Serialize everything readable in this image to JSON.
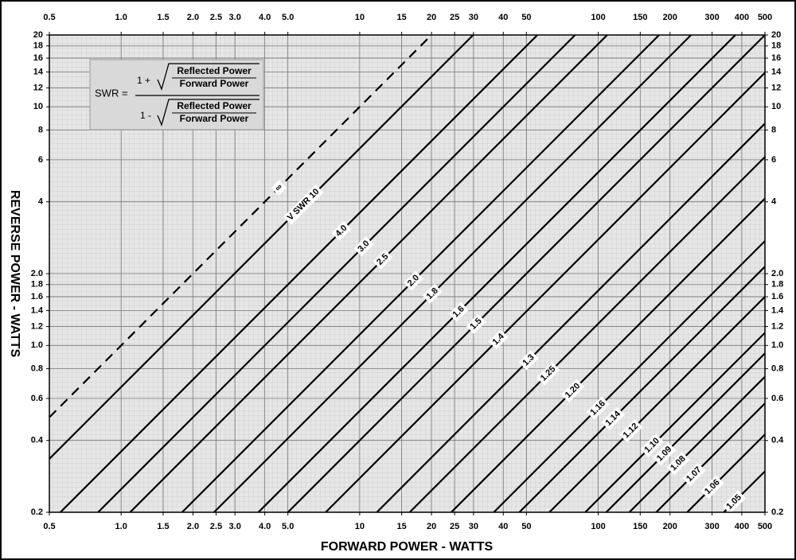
{
  "chart_data": {
    "type": "line",
    "x_label": "FORWARD POWER - WATTS",
    "y_label": "REVERSE POWER - WATTS",
    "log_x": true,
    "log_y": true,
    "grid": true,
    "xlim": [
      0.5,
      500
    ],
    "ylim": [
      0.2,
      20
    ],
    "xticks": [
      0.5,
      {
        "value": 1,
        "label": "1.0"
      },
      1.5,
      {
        "value": 2,
        "label": "2.0"
      },
      2.5,
      {
        "value": 3,
        "label": "3.0"
      },
      {
        "value": 4,
        "label": "4.0"
      },
      {
        "value": 5,
        "label": "5.0"
      },
      10,
      15,
      20,
      25,
      30,
      40,
      50,
      100,
      150,
      200,
      300,
      400,
      500
    ],
    "yticks": [
      0.2,
      0.4,
      0.6,
      0.8,
      {
        "value": 1,
        "label": "1.0"
      },
      1.2,
      1.4,
      1.6,
      1.8,
      {
        "value": 2,
        "label": "2.0"
      },
      4,
      6,
      8,
      10,
      12,
      14,
      16,
      18,
      20
    ],
    "formula": {
      "lhs": "SWR =",
      "num_prefix": "1 +",
      "den_prefix": "1 -",
      "inner_top": "Reflected Power",
      "inner_bottom": "Forward Power"
    },
    "series": [
      {
        "name": "∞",
        "color": "#000000",
        "style": "dashed",
        "x": [
          0.5,
          20
        ],
        "values": [
          0.5,
          20
        ]
      },
      {
        "name": "V SWR 10",
        "color": "#000000",
        "style": "solid",
        "x": [
          0.5,
          29.9
        ],
        "values": [
          0.335,
          20
        ]
      },
      {
        "name": "4.0",
        "color": "#000000",
        "style": "solid",
        "x": [
          0.556,
          55.6
        ],
        "values": [
          0.2,
          20
        ]
      },
      {
        "name": "3.0",
        "color": "#000000",
        "style": "solid",
        "x": [
          0.8,
          80
        ],
        "values": [
          0.2,
          20
        ]
      },
      {
        "name": "2.5",
        "color": "#000000",
        "style": "solid",
        "x": [
          1.09,
          109
        ],
        "values": [
          0.2,
          20
        ]
      },
      {
        "name": "2.0",
        "color": "#000000",
        "style": "solid",
        "x": [
          1.8,
          180
        ],
        "values": [
          0.2,
          20
        ]
      },
      {
        "name": "1.8",
        "color": "#000000",
        "style": "solid",
        "x": [
          2.45,
          245
        ],
        "values": [
          0.2,
          20
        ]
      },
      {
        "name": "1.6",
        "color": "#000000",
        "style": "solid",
        "x": [
          3.76,
          376
        ],
        "values": [
          0.2,
          20
        ]
      },
      {
        "name": "1.5",
        "color": "#000000",
        "style": "solid",
        "x": [
          5,
          500
        ],
        "values": [
          0.2,
          20
        ]
      },
      {
        "name": "1.4",
        "color": "#000000",
        "style": "solid",
        "x": [
          7.2,
          500
        ],
        "values": [
          0.2,
          13.9
        ]
      },
      {
        "name": "1.3",
        "color": "#000000",
        "style": "solid",
        "x": [
          11.8,
          500
        ],
        "values": [
          0.2,
          8.51
        ]
      },
      {
        "name": "1.25",
        "color": "#000000",
        "style": "solid",
        "x": [
          16.2,
          500
        ],
        "values": [
          0.2,
          6.17
        ]
      },
      {
        "name": "1.20",
        "color": "#000000",
        "style": "solid",
        "x": [
          24.2,
          500
        ],
        "values": [
          0.2,
          4.13
        ]
      },
      {
        "name": "1.16",
        "color": "#000000",
        "style": "solid",
        "x": [
          36.5,
          500
        ],
        "values": [
          0.2,
          2.74
        ]
      },
      {
        "name": "1.14",
        "color": "#000000",
        "style": "solid",
        "x": [
          46.7,
          500
        ],
        "values": [
          0.2,
          2.14
        ]
      },
      {
        "name": "1.12",
        "color": "#000000",
        "style": "solid",
        "x": [
          62.4,
          500
        ],
        "values": [
          0.2,
          1.6
        ]
      },
      {
        "name": "1.10",
        "color": "#000000",
        "style": "solid",
        "x": [
          88.2,
          500
        ],
        "values": [
          0.2,
          1.13
        ]
      },
      {
        "name": "1.09",
        "color": "#000000",
        "style": "solid",
        "x": [
          108,
          500
        ],
        "values": [
          0.2,
          0.927
        ]
      },
      {
        "name": "1.08",
        "color": "#000000",
        "style": "solid",
        "x": [
          135,
          500
        ],
        "values": [
          0.2,
          0.74
        ]
      },
      {
        "name": "1.07",
        "color": "#000000",
        "style": "solid",
        "x": [
          175,
          500
        ],
        "values": [
          0.2,
          0.572
        ]
      },
      {
        "name": "1.06",
        "color": "#000000",
        "style": "solid",
        "x": [
          236,
          500
        ],
        "values": [
          0.2,
          0.424
        ]
      },
      {
        "name": "1.05",
        "color": "#000000",
        "style": "solid",
        "x": [
          336,
          500
        ],
        "values": [
          0.2,
          0.297
        ]
      }
    ]
  }
}
